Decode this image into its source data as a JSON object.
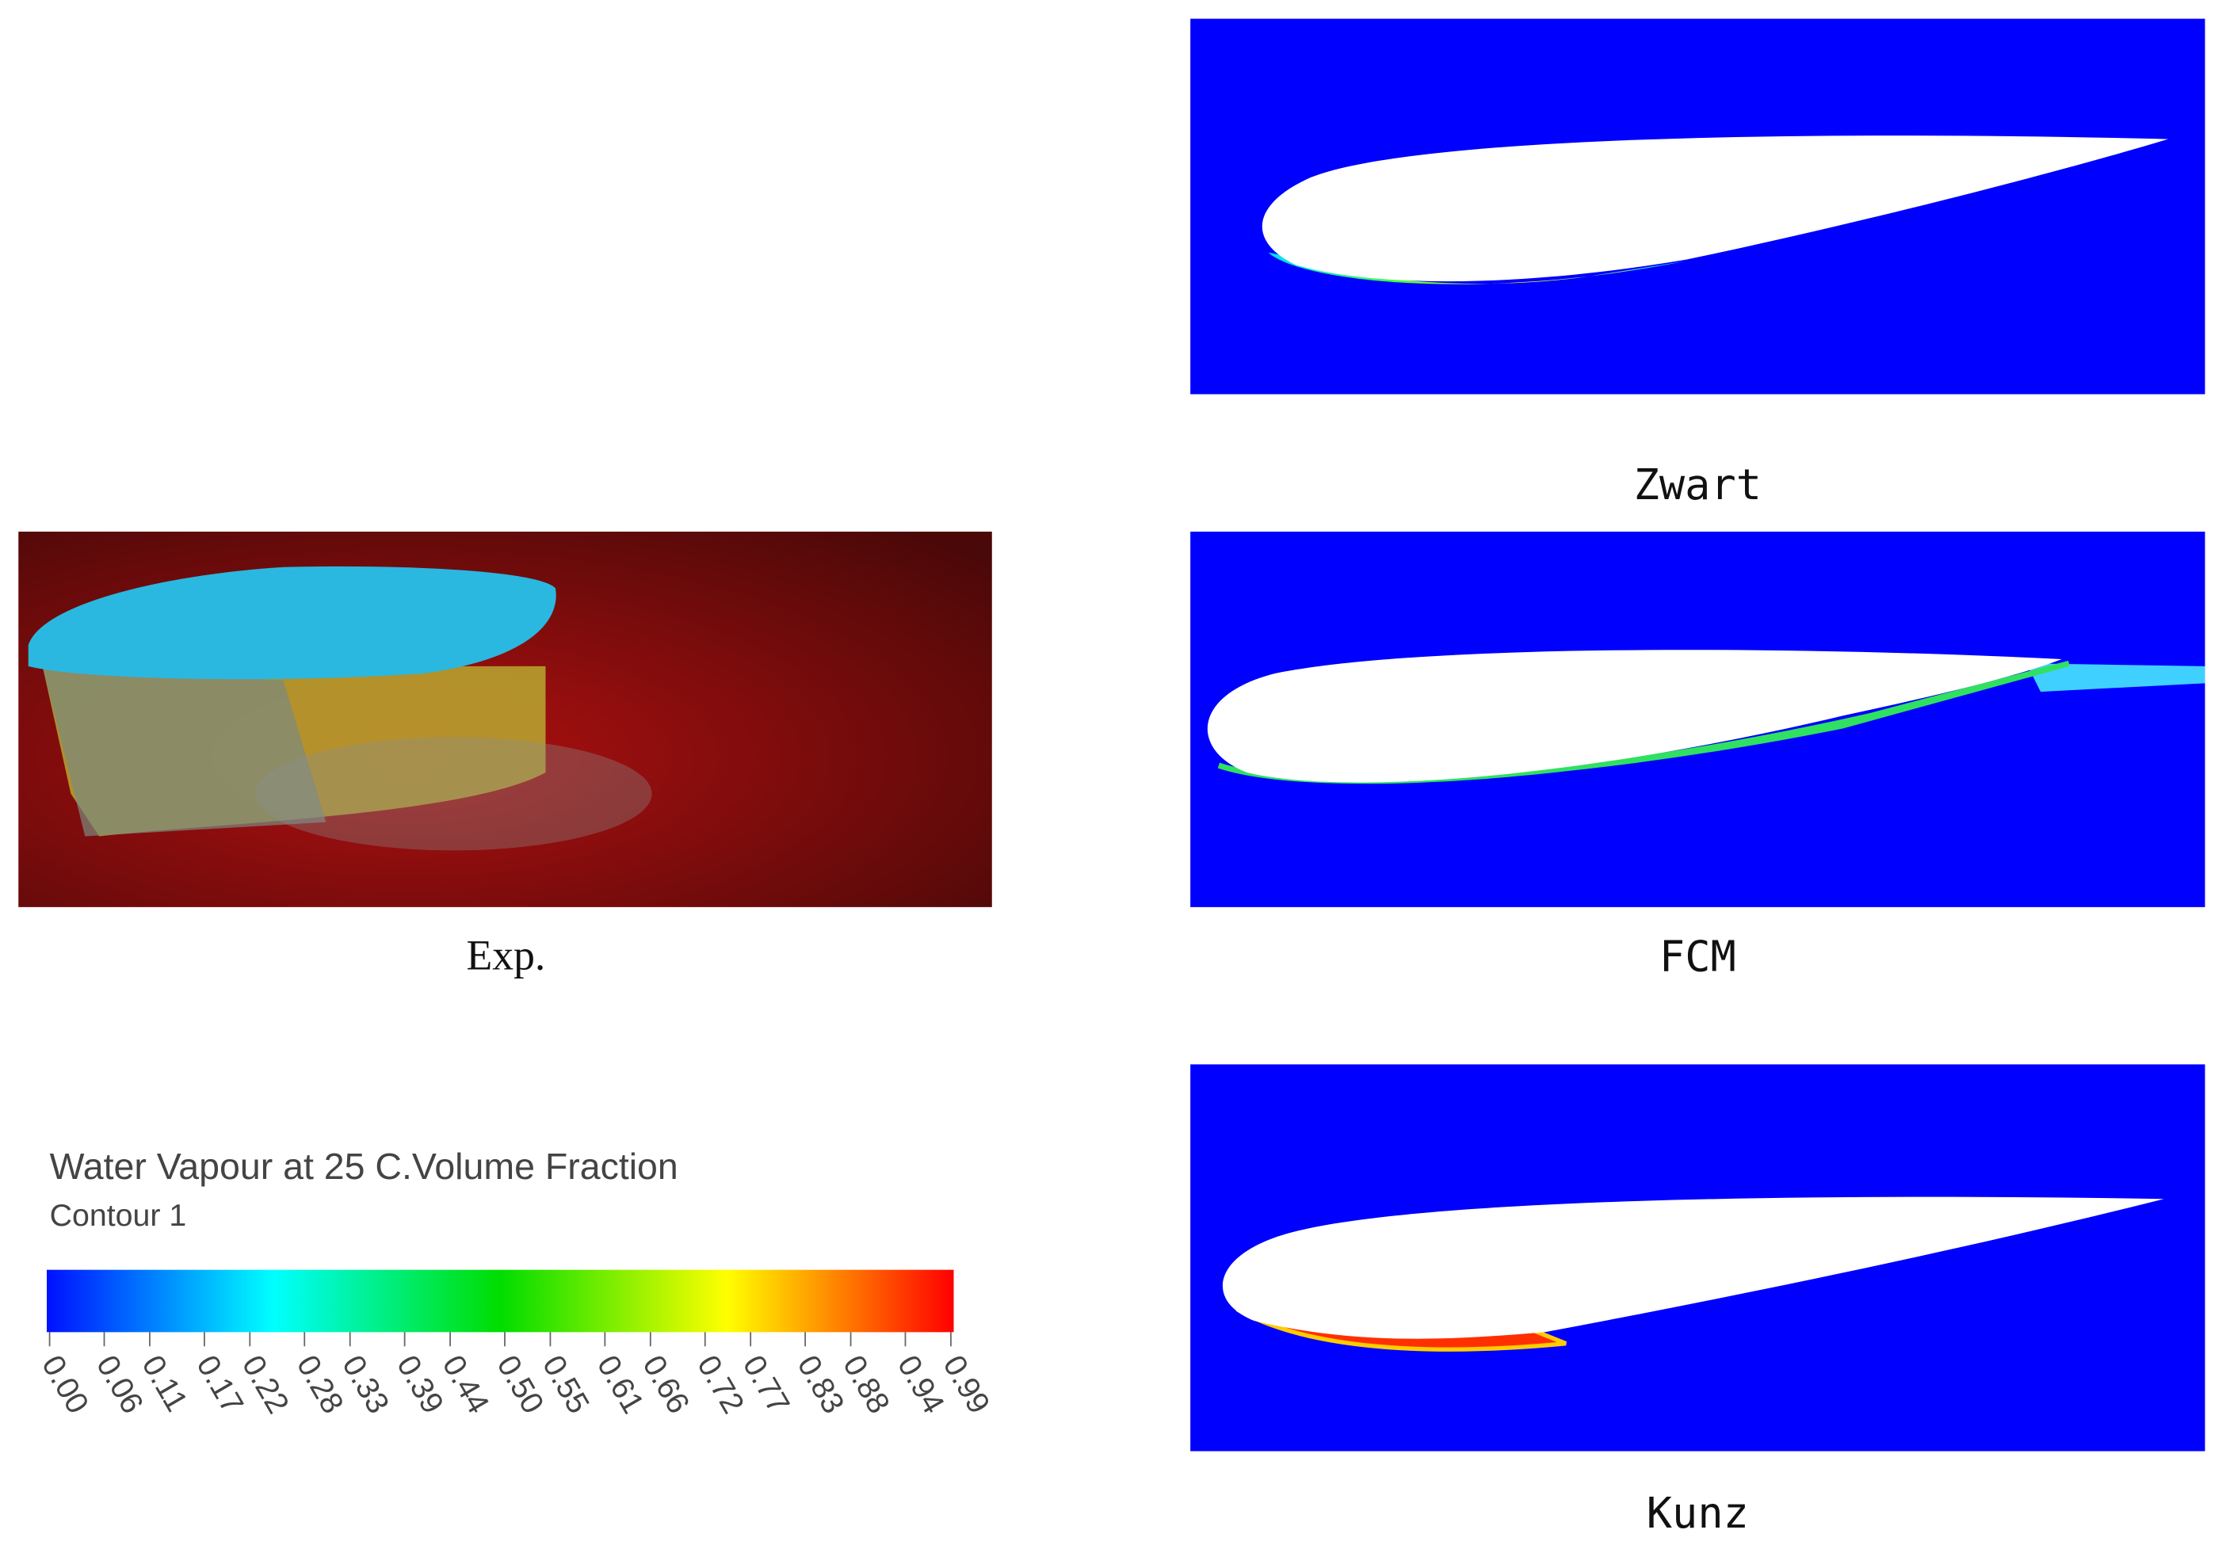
{
  "panels": {
    "zwart": "Zwart",
    "exp": "Exp.",
    "fcm": "FCM",
    "kunz": "Kunz"
  },
  "legend": {
    "title": "Water Vapour at 25 C.Volume Fraction",
    "subtitle": "Contour 1",
    "ticks": [
      {
        "value": 0,
        "label": "0.00"
      },
      {
        "value": 0.06,
        "label": "0.06"
      },
      {
        "value": 0.11,
        "label": "0.11"
      },
      {
        "value": 0.17,
        "label": "0.17"
      },
      {
        "value": 0.22,
        "label": "0.22"
      },
      {
        "value": 0.28,
        "label": "0.28"
      },
      {
        "value": 0.33,
        "label": "0.33"
      },
      {
        "value": 0.39,
        "label": "0.39"
      },
      {
        "value": 0.44,
        "label": "0.44"
      },
      {
        "value": 0.5,
        "label": "0.50"
      },
      {
        "value": 0.55,
        "label": "0.55"
      },
      {
        "value": 0.61,
        "label": "0.61"
      },
      {
        "value": 0.66,
        "label": "0.66"
      },
      {
        "value": 0.72,
        "label": "0.72"
      },
      {
        "value": 0.77,
        "label": "0.77"
      },
      {
        "value": 0.83,
        "label": "0.83"
      },
      {
        "value": 0.88,
        "label": "0.88"
      },
      {
        "value": 0.94,
        "label": "0.94"
      },
      {
        "value": 0.99,
        "label": "0.99"
      }
    ]
  }
}
